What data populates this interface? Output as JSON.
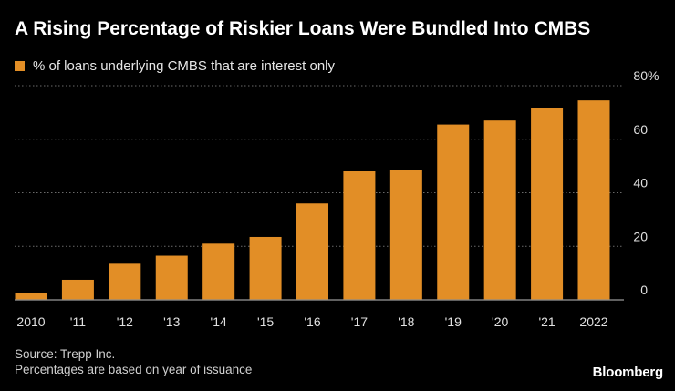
{
  "chart_data": {
    "type": "bar",
    "title": "A Rising Percentage of Riskier Loans Were Bundled Into CMBS",
    "series": [
      {
        "name": "% of loans underlying CMBS that are interest only",
        "values": [
          2.5,
          7.5,
          13.5,
          16.5,
          21,
          23.5,
          36,
          48,
          48.5,
          65.5,
          67,
          71.5,
          74.5
        ]
      }
    ],
    "categories": [
      "2010",
      "'11",
      "'12",
      "'13",
      "'14",
      "'15",
      "'16",
      "'17",
      "'18",
      "'19",
      "'20",
      "'21",
      "2022"
    ],
    "ylim": [
      0,
      80
    ],
    "y_ticks": [
      0,
      20,
      40,
      60,
      80
    ],
    "y_unit_label": "%",
    "grid": true,
    "legend_position": "top-left",
    "colors": {
      "bar": "#E28E26",
      "grid": "#6a6a6a",
      "axis_text": "#e0e0e0"
    }
  },
  "source": {
    "line1": "Source: Trepp Inc.",
    "line2": "Percentages are based on year of issuance"
  },
  "brand": "Bloomberg"
}
